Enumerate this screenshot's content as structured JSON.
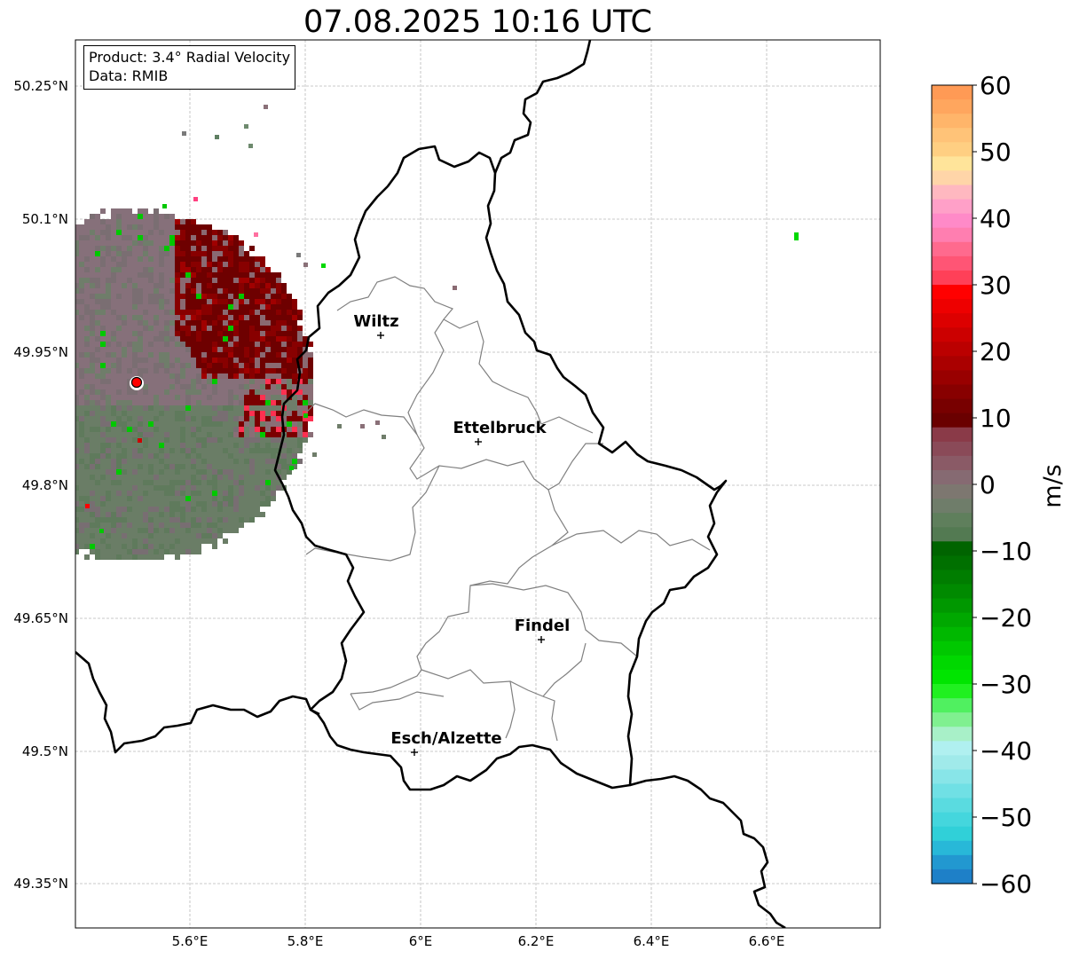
{
  "title": "07.08.2025 10:16 UTC",
  "info": {
    "product": "Product: 3.4° Radial Velocity",
    "data": "Data: RMIB"
  },
  "axes": {
    "lat_ticks": [
      "50.25°N",
      "50.1°N",
      "49.95°N",
      "49.8°N",
      "49.65°N",
      "49.5°N",
      "49.35°N"
    ],
    "lon_ticks": [
      "5.6°E",
      "5.8°E",
      "6°E",
      "6.2°E",
      "6.4°E",
      "6.6°E"
    ]
  },
  "cities": [
    {
      "name": "Wiltz"
    },
    {
      "name": "Ettelbruck"
    },
    {
      "name": "Findel"
    },
    {
      "name": "Esch/Alzette"
    }
  ],
  "colorbar": {
    "unit": "m/s",
    "ticks": [
      "60",
      "50",
      "40",
      "30",
      "20",
      "10",
      "0",
      "−10",
      "−20",
      "−30",
      "−40",
      "−50",
      "−60"
    ],
    "range": [
      -60,
      60
    ]
  },
  "colors": {
    "radar_site": "#ff0000",
    "outbound_dark": "#7a0000",
    "near_zero": "#8a7078",
    "inbound_gray": "#5f7f62"
  }
}
